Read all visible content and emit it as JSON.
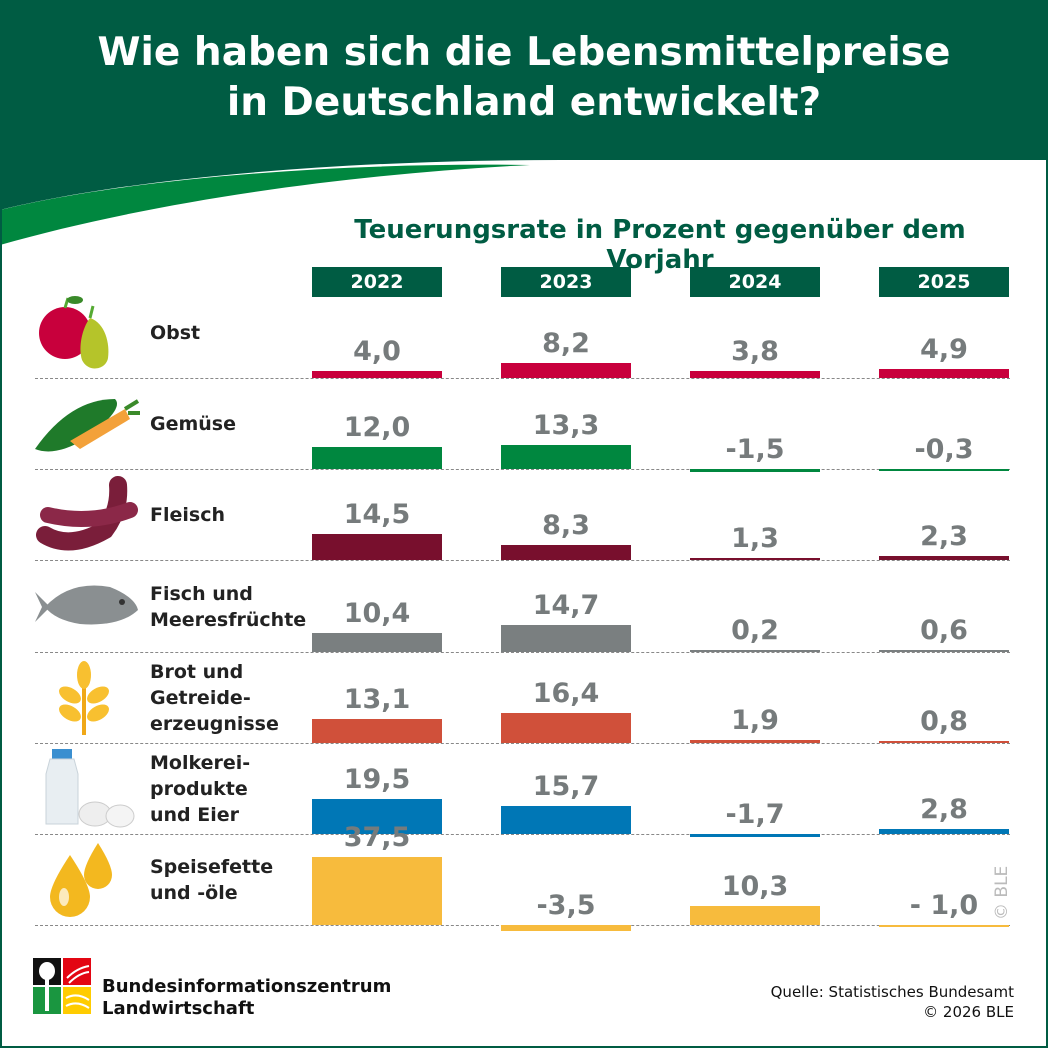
{
  "title_line1": "Wie haben sich die Lebensmittelpreise",
  "title_line2": "in Deutschland entwickelt?",
  "colors": {
    "header": "#005c43",
    "swoosh": "#00873f",
    "label": "#767b7c"
  },
  "chart_data": {
    "type": "bar",
    "title": "Teuerungsrate in Prozent gegenüber dem Vorjahr",
    "years": [
      "2022",
      "2023",
      "2024",
      "2025"
    ],
    "categories": [
      {
        "name": "Obst",
        "icon": "fruit-icon",
        "color": "#c8003c",
        "values": [
          4.0,
          8.2,
          3.8,
          4.9
        ],
        "labels": [
          "4,0",
          "8,2",
          "3,8",
          "4,9"
        ]
      },
      {
        "name": "Gemüse",
        "icon": "vegetable-icon",
        "color": "#00873f",
        "values": [
          12.0,
          13.3,
          -1.5,
          -0.3
        ],
        "labels": [
          "12,0",
          "13,3",
          "-1,5",
          "-0,3"
        ]
      },
      {
        "name": "Fleisch",
        "icon": "sausage-icon",
        "color": "#780f2d",
        "values": [
          14.5,
          8.3,
          1.3,
          2.3
        ],
        "labels": [
          "14,5",
          "8,3",
          "1,3",
          "2,3"
        ]
      },
      {
        "name": "Fisch und\nMeeresfrüchte",
        "icon": "fish-icon",
        "color": "#7a7f80",
        "values": [
          10.4,
          14.7,
          0.2,
          0.6
        ],
        "labels": [
          "10,4",
          "14,7",
          "0,2",
          "0,6"
        ]
      },
      {
        "name": "Brot und\nGetreide-\nerzeugnisse",
        "icon": "grain-icon",
        "color": "#d0503a",
        "values": [
          13.1,
          16.4,
          1.9,
          0.8
        ],
        "labels": [
          "13,1",
          "16,4",
          "1,9",
          "0,8"
        ]
      },
      {
        "name": "Molkerei-\nprodukte\nund Eier",
        "icon": "milk-eggs-icon",
        "color": "#0077b6",
        "values": [
          19.5,
          15.7,
          -1.7,
          2.8
        ],
        "labels": [
          "19,5",
          "15,7",
          "-1,7",
          "2,8"
        ]
      },
      {
        "name": "Speisefette\nund -öle",
        "icon": "oil-drops-icon",
        "color": "#f7bb3d",
        "values": [
          37.5,
          -3.5,
          10.3,
          -1.0
        ],
        "labels": [
          "37,5",
          "-3,5",
          "10,3",
          "- 1,0"
        ]
      }
    ]
  },
  "watermark": "© BLE",
  "footer": {
    "org_line1": "Bundesinformationszentrum",
    "org_line2": "Landwirtschaft",
    "source": "Quelle: Statistisches Bundesamt",
    "copyright": "© 2026 BLE"
  }
}
